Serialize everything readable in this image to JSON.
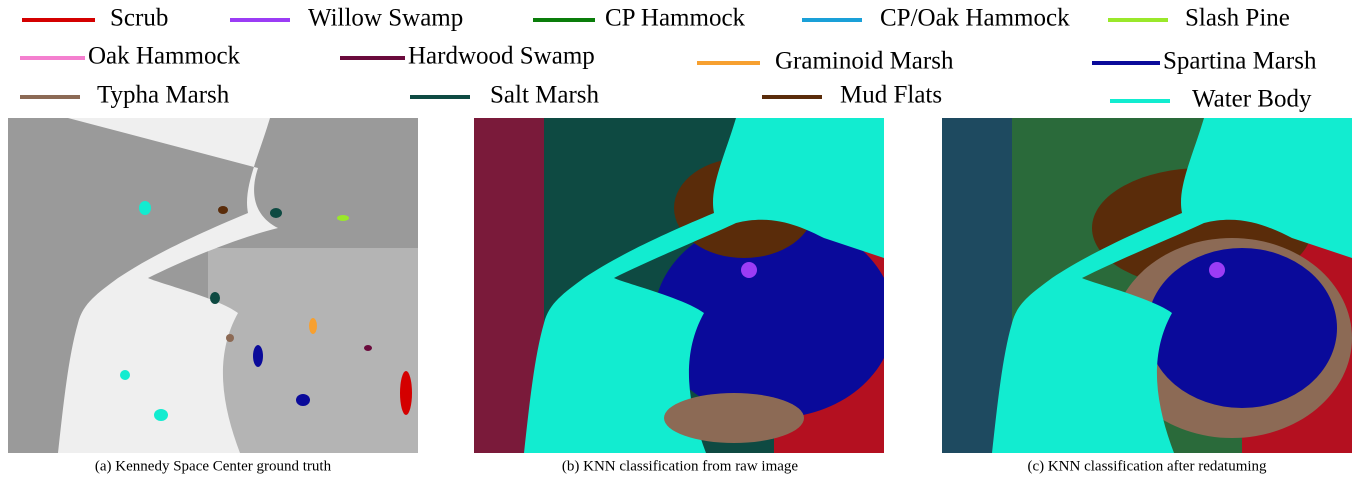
{
  "legend": [
    {
      "name": "Scrub",
      "color": "#d40000"
    },
    {
      "name": "Willow Swamp",
      "color": "#9b3cf5"
    },
    {
      "name": "CP Hammock",
      "color": "#0a7d0a"
    },
    {
      "name": "CP/Oak Hammock",
      "color": "#1aa0d8"
    },
    {
      "name": "Slash Pine",
      "color": "#9ae82a"
    },
    {
      "name": "Oak Hammock",
      "color": "#f47fcf"
    },
    {
      "name": "Hardwood Swamp",
      "color": "#6a0a3c"
    },
    {
      "name": "Graminoid Marsh",
      "color": "#f7a030"
    },
    {
      "name": "Spartina Marsh",
      "color": "#0a0a9a"
    },
    {
      "name": "Typha Marsh",
      "color": "#8c6a55"
    },
    {
      "name": "Salt Marsh",
      "color": "#0e4a42"
    },
    {
      "name": "Mud Flats",
      "color": "#5a2c0a"
    },
    {
      "name": "Water Body",
      "color": "#12ecd0"
    }
  ],
  "panels": [
    {
      "caption": "(a) Kennedy Space Center ground truth"
    },
    {
      "caption": "(b) KNN classification from raw image"
    },
    {
      "caption": "(c) KNN classification after redatuming"
    }
  ]
}
